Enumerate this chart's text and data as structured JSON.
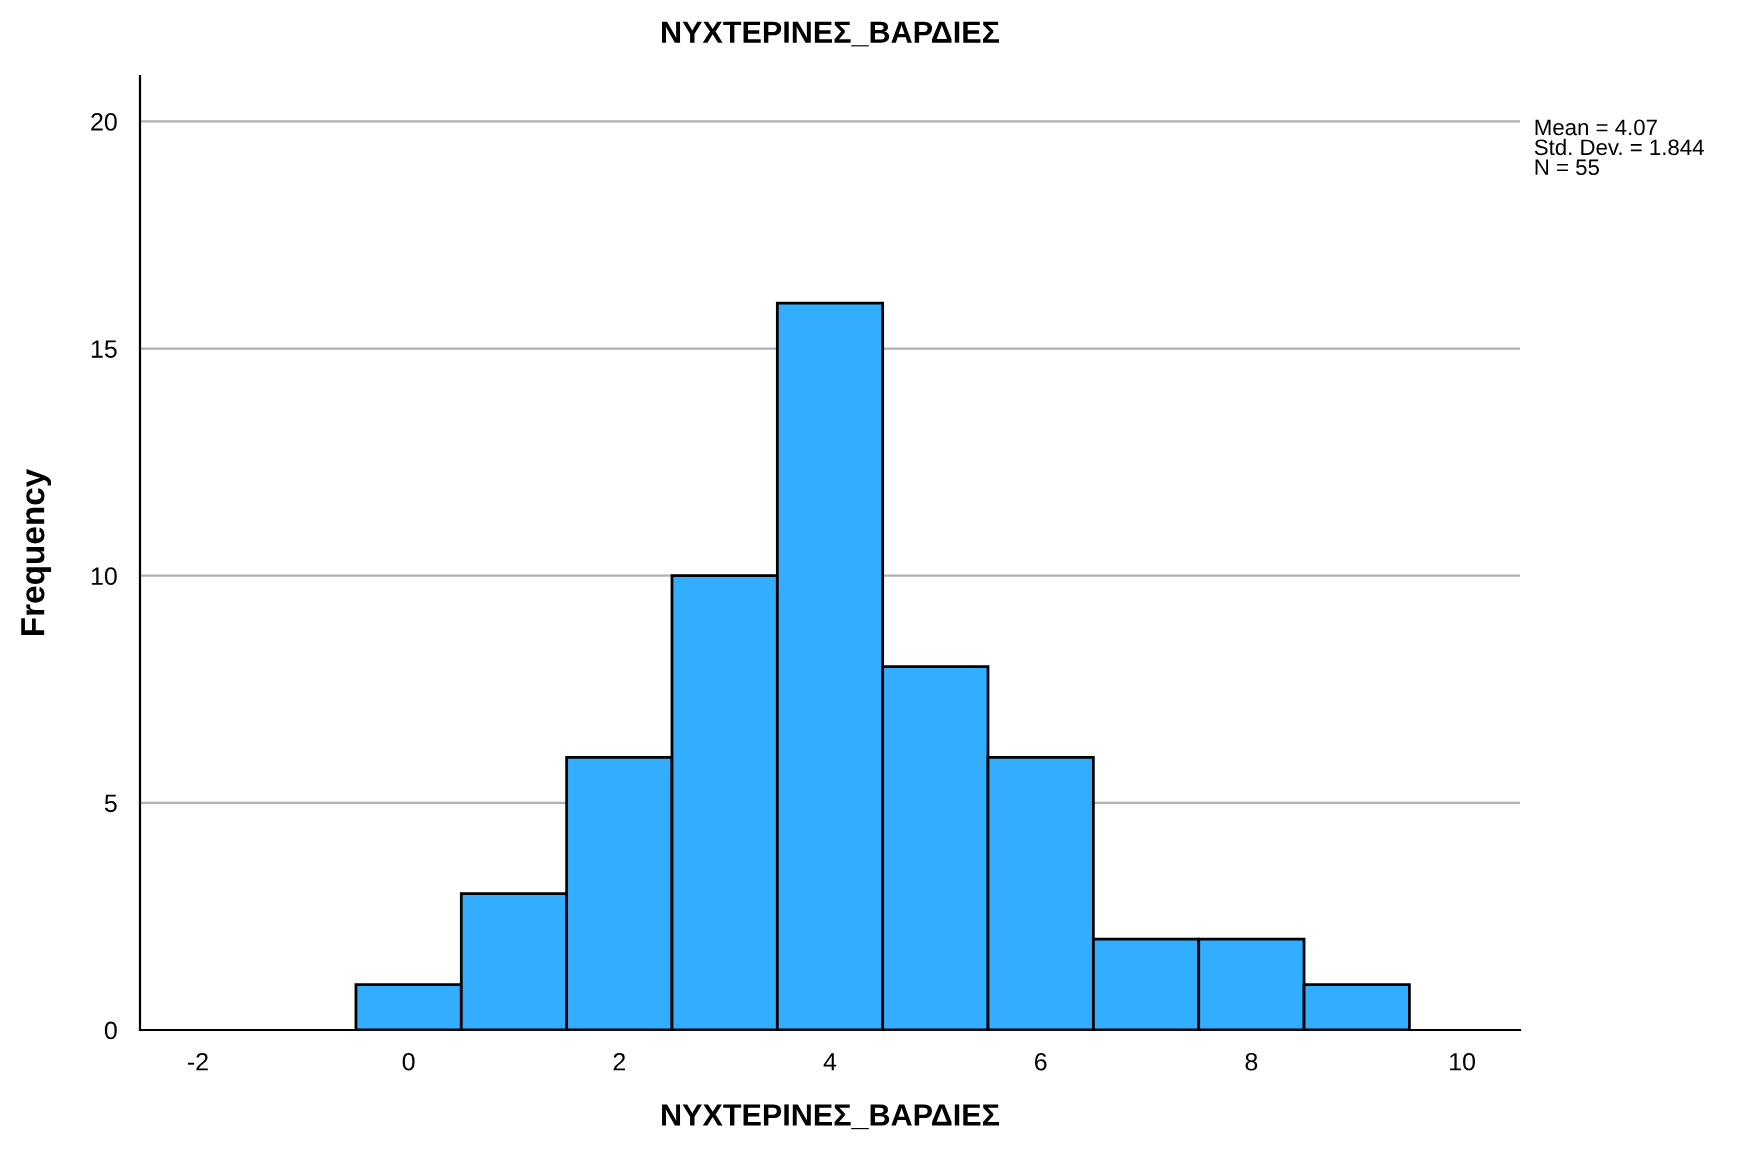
{
  "chart_data": {
    "type": "histogram",
    "title": "ΝΥΧΤΕΡΙΝΕΣ_ΒΑΡΔΙΕΣ",
    "xlabel": "ΝΥΧΤΕΡΙΝΕΣ_ΒΑΡΔΙΕΣ",
    "ylabel": "Frequency",
    "bins": [
      -0.5,
      0.5,
      1.5,
      2.5,
      3.5,
      4.5,
      5.5,
      6.5,
      7.5,
      8.5,
      9.5
    ],
    "values": [
      1,
      3,
      6,
      10,
      16,
      8,
      6,
      2,
      2,
      1
    ],
    "color": "#33adff",
    "xlim": [
      -2.55,
      10.55
    ],
    "ylim": [
      0,
      21
    ],
    "xticks": [
      {
        "value": -2,
        "label": "-2"
      },
      0,
      2,
      4,
      6,
      8,
      10
    ],
    "yticks": [
      0,
      5,
      10,
      15,
      20
    ],
    "grid": "y",
    "annotations": [
      "Mean = 4.07\nStd. Dev. = 1.844\nN = 55"
    ]
  }
}
